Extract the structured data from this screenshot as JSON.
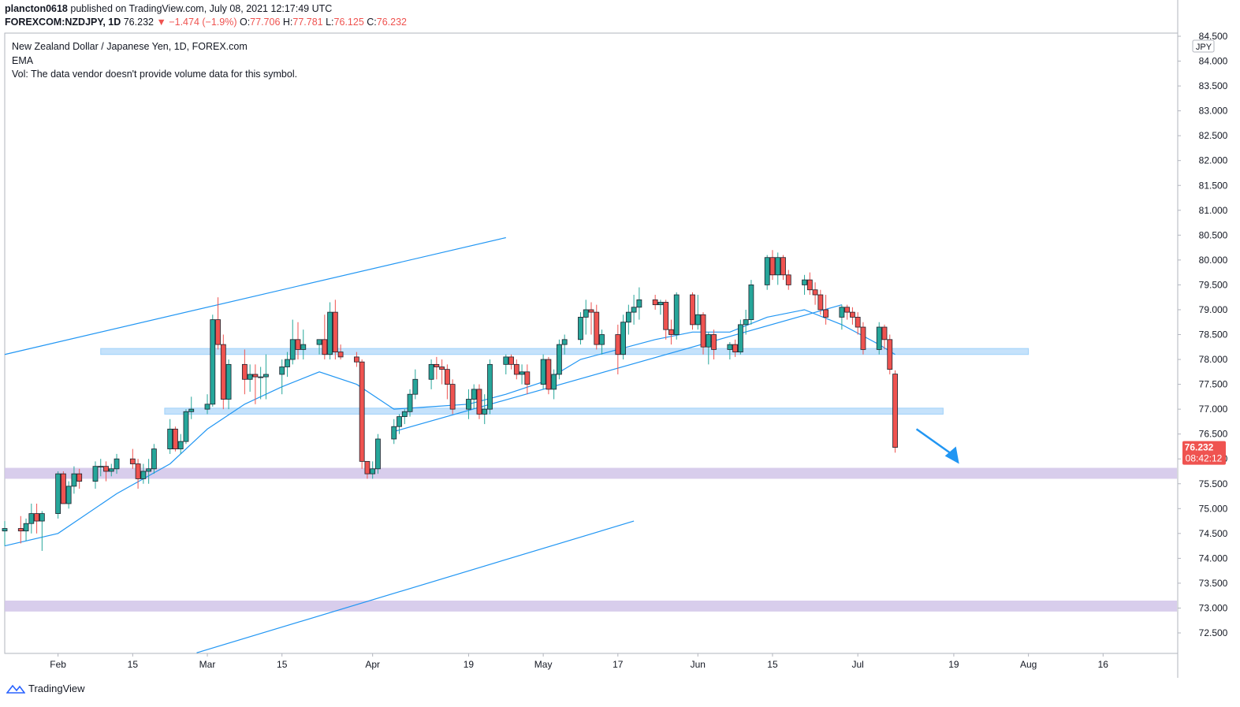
{
  "header": {
    "user": "plancton0618",
    "published": "published on TradingView.com, July 08, 2021 12:17:49 UTC",
    "symbol": "FOREXCOM:NZDJPY, 1D",
    "last": "76.232",
    "change": "−1.474 (−1.9%)",
    "o_label": "O:",
    "o_val": "77.706",
    "h_label": "H:",
    "h_val": "77.781",
    "l_label": "L:",
    "l_val": "76.125",
    "c_label": "C:",
    "c_val": "76.232"
  },
  "legend": {
    "title": "New Zealand Dollar / Japanese Yen, 1D, FOREX.com",
    "indicator": "EMA",
    "volume_note": "Vol: The data vendor doesn't provide volume data for this symbol."
  },
  "price_tag": {
    "price": "76.232",
    "countdown": "08:42:12"
  },
  "currency_label": "JPY",
  "footer": {
    "brand": "TradingView"
  },
  "colors": {
    "up": "#26a69a",
    "down": "#ef5350",
    "ema": "#2196f3",
    "zone_blue": "#bbdefb",
    "zone_purple": "#d1c4e9",
    "line": "#2196f3",
    "price_tag": "#ef5350"
  },
  "chart_data": {
    "type": "candlestick",
    "y_axis_ticks": [
      "84.500",
      "84.000",
      "83.500",
      "83.000",
      "82.500",
      "82.000",
      "81.500",
      "81.000",
      "80.500",
      "80.000",
      "79.500",
      "79.000",
      "78.500",
      "78.000",
      "77.500",
      "77.000",
      "76.500",
      "76.000",
      "75.500",
      "75.000",
      "74.500",
      "74.000",
      "73.500",
      "73.000",
      "72.500"
    ],
    "x_axis_ticks": [
      {
        "label": "Feb",
        "date": "2021-02-01"
      },
      {
        "label": "15",
        "date": "2021-02-15"
      },
      {
        "label": "Mar",
        "date": "2021-03-01"
      },
      {
        "label": "15",
        "date": "2021-03-15"
      },
      {
        "label": "Apr",
        "date": "2021-04-01"
      },
      {
        "label": "19",
        "date": "2021-04-19"
      },
      {
        "label": "May",
        "date": "2021-05-03"
      },
      {
        "label": "17",
        "date": "2021-05-17"
      },
      {
        "label": "Jun",
        "date": "2021-06-01"
      },
      {
        "label": "15",
        "date": "2021-06-15"
      },
      {
        "label": "Jul",
        "date": "2021-07-01"
      },
      {
        "label": "19",
        "date": "2021-07-19"
      },
      {
        "label": "Aug",
        "date": "2021-08-02"
      },
      {
        "label": "16",
        "date": "2021-08-16"
      }
    ],
    "ylim": [
      72.1,
      84.55
    ],
    "xlim": [
      "2021-01-22",
      "2021-08-30"
    ],
    "candles": [
      {
        "d": "2021-01-22",
        "o": 74.55,
        "h": 74.75,
        "l": 74.25,
        "c": 74.6
      },
      {
        "d": "2021-01-25",
        "o": 74.6,
        "h": 74.85,
        "l": 74.3,
        "c": 74.55
      },
      {
        "d": "2021-01-26",
        "o": 74.55,
        "h": 74.8,
        "l": 74.35,
        "c": 74.7
      },
      {
        "d": "2021-01-27",
        "o": 74.7,
        "h": 75.1,
        "l": 74.5,
        "c": 74.9
      },
      {
        "d": "2021-01-28",
        "o": 74.9,
        "h": 75.1,
        "l": 74.5,
        "c": 74.75
      },
      {
        "d": "2021-01-29",
        "o": 74.75,
        "h": 74.95,
        "l": 74.15,
        "c": 74.9
      },
      {
        "d": "2021-02-01",
        "o": 74.9,
        "h": 75.75,
        "l": 74.8,
        "c": 75.7
      },
      {
        "d": "2021-02-02",
        "o": 75.7,
        "h": 75.75,
        "l": 75.1,
        "c": 75.1
      },
      {
        "d": "2021-02-03",
        "o": 75.1,
        "h": 75.55,
        "l": 75.0,
        "c": 75.45
      },
      {
        "d": "2021-02-04",
        "o": 75.45,
        "h": 75.85,
        "l": 75.3,
        "c": 75.7
      },
      {
        "d": "2021-02-05",
        "o": 75.7,
        "h": 75.8,
        "l": 75.4,
        "c": 75.55
      },
      {
        "d": "2021-02-08",
        "o": 75.55,
        "h": 75.95,
        "l": 75.4,
        "c": 75.85
      },
      {
        "d": "2021-02-09",
        "o": 75.85,
        "h": 76.0,
        "l": 75.65,
        "c": 75.85
      },
      {
        "d": "2021-02-10",
        "o": 75.85,
        "h": 75.95,
        "l": 75.55,
        "c": 75.75
      },
      {
        "d": "2021-02-11",
        "o": 75.75,
        "h": 75.9,
        "l": 75.65,
        "c": 75.8
      },
      {
        "d": "2021-02-12",
        "o": 75.8,
        "h": 76.1,
        "l": 75.7,
        "c": 76.0
      },
      {
        "d": "2021-02-15",
        "o": 76.0,
        "h": 76.2,
        "l": 75.8,
        "c": 75.9
      },
      {
        "d": "2021-02-16",
        "o": 75.9,
        "h": 76.0,
        "l": 75.4,
        "c": 75.6
      },
      {
        "d": "2021-02-17",
        "o": 75.6,
        "h": 75.9,
        "l": 75.5,
        "c": 75.75
      },
      {
        "d": "2021-02-18",
        "o": 75.75,
        "h": 76.0,
        "l": 75.5,
        "c": 75.8
      },
      {
        "d": "2021-02-19",
        "o": 75.8,
        "h": 76.3,
        "l": 75.7,
        "c": 76.2
      },
      {
        "d": "2021-02-22",
        "o": 76.2,
        "h": 76.8,
        "l": 76.1,
        "c": 76.6
      },
      {
        "d": "2021-02-23",
        "o": 76.6,
        "h": 76.65,
        "l": 76.15,
        "c": 76.2
      },
      {
        "d": "2021-02-24",
        "o": 76.2,
        "h": 76.5,
        "l": 76.1,
        "c": 76.35
      },
      {
        "d": "2021-02-25",
        "o": 76.35,
        "h": 77.0,
        "l": 76.3,
        "c": 76.95
      },
      {
        "d": "2021-02-26",
        "o": 76.95,
        "h": 77.25,
        "l": 76.8,
        "c": 77.0
      },
      {
        "d": "2021-03-01",
        "o": 77.0,
        "h": 77.3,
        "l": 76.9,
        "c": 77.1
      },
      {
        "d": "2021-03-02",
        "o": 77.1,
        "h": 78.9,
        "l": 77.05,
        "c": 78.8
      },
      {
        "d": "2021-03-03",
        "o": 78.8,
        "h": 79.25,
        "l": 78.2,
        "c": 78.3
      },
      {
        "d": "2021-03-04",
        "o": 78.3,
        "h": 78.5,
        "l": 77.0,
        "c": 77.2
      },
      {
        "d": "2021-03-05",
        "o": 77.2,
        "h": 78.0,
        "l": 77.0,
        "c": 77.9
      },
      {
        "d": "2021-03-08",
        "o": 77.9,
        "h": 78.2,
        "l": 77.3,
        "c": 77.6
      },
      {
        "d": "2021-03-09",
        "o": 77.6,
        "h": 77.9,
        "l": 77.35,
        "c": 77.7
      },
      {
        "d": "2021-03-10",
        "o": 77.7,
        "h": 77.9,
        "l": 77.1,
        "c": 77.65
      },
      {
        "d": "2021-03-11",
        "o": 77.65,
        "h": 77.85,
        "l": 77.2,
        "c": 77.65
      },
      {
        "d": "2021-03-12",
        "o": 77.65,
        "h": 78.1,
        "l": 77.2,
        "c": 77.7
      },
      {
        "d": "2021-03-15",
        "o": 77.7,
        "h": 78.0,
        "l": 77.3,
        "c": 77.85
      },
      {
        "d": "2021-03-16",
        "o": 77.85,
        "h": 78.15,
        "l": 77.65,
        "c": 78.0
      },
      {
        "d": "2021-03-17",
        "o": 78.0,
        "h": 78.8,
        "l": 77.9,
        "c": 78.4
      },
      {
        "d": "2021-03-18",
        "o": 78.4,
        "h": 78.75,
        "l": 78.0,
        "c": 78.2
      },
      {
        "d": "2021-03-19",
        "o": 78.2,
        "h": 78.6,
        "l": 78.0,
        "c": 78.3
      },
      {
        "d": "2021-03-22",
        "o": 78.3,
        "h": 78.4,
        "l": 78.1,
        "c": 78.4
      },
      {
        "d": "2021-03-23",
        "o": 78.4,
        "h": 78.9,
        "l": 78.0,
        "c": 78.1
      },
      {
        "d": "2021-03-24",
        "o": 78.1,
        "h": 79.15,
        "l": 78.0,
        "c": 78.95
      },
      {
        "d": "2021-03-25",
        "o": 78.95,
        "h": 79.2,
        "l": 78.0,
        "c": 78.15
      },
      {
        "d": "2021-03-26",
        "o": 78.15,
        "h": 78.3,
        "l": 78.0,
        "c": 78.05
      },
      {
        "d": "2021-03-29",
        "o": 78.05,
        "h": 78.15,
        "l": 77.85,
        "c": 77.95
      },
      {
        "d": "2021-03-30",
        "o": 77.95,
        "h": 78.0,
        "l": 75.8,
        "c": 75.95
      },
      {
        "d": "2021-03-31",
        "o": 75.95,
        "h": 75.95,
        "l": 75.6,
        "c": 75.7
      },
      {
        "d": "2021-04-01",
        "o": 75.7,
        "h": 75.95,
        "l": 75.6,
        "c": 75.8
      },
      {
        "d": "2021-04-02",
        "o": 75.8,
        "h": 76.5,
        "l": 75.7,
        "c": 76.4
      },
      {
        "d": "2021-04-05",
        "o": 76.4,
        "h": 76.8,
        "l": 76.3,
        "c": 76.65
      },
      {
        "d": "2021-04-06",
        "o": 76.65,
        "h": 76.9,
        "l": 76.5,
        "c": 76.85
      },
      {
        "d": "2021-04-07",
        "o": 76.85,
        "h": 77.0,
        "l": 76.7,
        "c": 76.95
      },
      {
        "d": "2021-04-08",
        "o": 76.95,
        "h": 77.4,
        "l": 76.85,
        "c": 77.3
      },
      {
        "d": "2021-04-09",
        "o": 77.3,
        "h": 77.8,
        "l": 77.2,
        "c": 77.6
      },
      {
        "d": "2021-04-12",
        "o": 77.6,
        "h": 78.0,
        "l": 77.4,
        "c": 77.9
      },
      {
        "d": "2021-04-13",
        "o": 77.9,
        "h": 78.05,
        "l": 77.6,
        "c": 77.85
      },
      {
        "d": "2021-04-14",
        "o": 77.85,
        "h": 78.0,
        "l": 77.5,
        "c": 77.8
      },
      {
        "d": "2021-04-15",
        "o": 77.8,
        "h": 77.9,
        "l": 77.2,
        "c": 77.5
      },
      {
        "d": "2021-04-16",
        "o": 77.5,
        "h": 77.6,
        "l": 76.9,
        "c": 77.0
      },
      {
        "d": "2021-04-19",
        "o": 77.0,
        "h": 77.4,
        "l": 76.8,
        "c": 77.2
      },
      {
        "d": "2021-04-20",
        "o": 77.2,
        "h": 77.5,
        "l": 77.0,
        "c": 77.4
      },
      {
        "d": "2021-04-21",
        "o": 77.4,
        "h": 77.5,
        "l": 76.8,
        "c": 76.9
      },
      {
        "d": "2021-04-22",
        "o": 76.9,
        "h": 77.3,
        "l": 76.7,
        "c": 77.0
      },
      {
        "d": "2021-04-23",
        "o": 77.0,
        "h": 78.0,
        "l": 76.9,
        "c": 77.9
      },
      {
        "d": "2021-04-26",
        "o": 77.9,
        "h": 78.1,
        "l": 77.7,
        "c": 78.05
      },
      {
        "d": "2021-04-27",
        "o": 78.05,
        "h": 78.1,
        "l": 77.8,
        "c": 77.9
      },
      {
        "d": "2021-04-28",
        "o": 77.9,
        "h": 78.0,
        "l": 77.6,
        "c": 77.7
      },
      {
        "d": "2021-04-29",
        "o": 77.7,
        "h": 77.9,
        "l": 77.5,
        "c": 77.75
      },
      {
        "d": "2021-04-30",
        "o": 77.75,
        "h": 77.9,
        "l": 77.3,
        "c": 77.5
      },
      {
        "d": "2021-05-03",
        "o": 77.5,
        "h": 78.1,
        "l": 77.4,
        "c": 78.0
      },
      {
        "d": "2021-05-04",
        "o": 78.0,
        "h": 78.05,
        "l": 77.3,
        "c": 77.4
      },
      {
        "d": "2021-05-05",
        "o": 77.4,
        "h": 77.8,
        "l": 77.2,
        "c": 77.7
      },
      {
        "d": "2021-05-06",
        "o": 77.7,
        "h": 78.4,
        "l": 77.6,
        "c": 78.3
      },
      {
        "d": "2021-05-07",
        "o": 78.3,
        "h": 78.5,
        "l": 78.1,
        "c": 78.4
      },
      {
        "d": "2021-05-10",
        "o": 78.4,
        "h": 78.95,
        "l": 78.3,
        "c": 78.85
      },
      {
        "d": "2021-05-11",
        "o": 78.85,
        "h": 79.2,
        "l": 78.5,
        "c": 79.0
      },
      {
        "d": "2021-05-12",
        "o": 79.0,
        "h": 79.15,
        "l": 78.5,
        "c": 78.95
      },
      {
        "d": "2021-05-13",
        "o": 78.95,
        "h": 79.1,
        "l": 78.2,
        "c": 78.3
      },
      {
        "d": "2021-05-14",
        "o": 78.3,
        "h": 78.6,
        "l": 78.1,
        "c": 78.5
      },
      {
        "d": "2021-05-17",
        "o": 78.5,
        "h": 78.7,
        "l": 77.7,
        "c": 78.1
      },
      {
        "d": "2021-05-18",
        "o": 78.1,
        "h": 78.9,
        "l": 78.0,
        "c": 78.75
      },
      {
        "d": "2021-05-19",
        "o": 78.75,
        "h": 79.1,
        "l": 78.5,
        "c": 78.95
      },
      {
        "d": "2021-05-20",
        "o": 78.95,
        "h": 79.3,
        "l": 78.7,
        "c": 79.05
      },
      {
        "d": "2021-05-21",
        "o": 79.05,
        "h": 79.45,
        "l": 78.8,
        "c": 79.2
      },
      {
        "d": "2021-05-24",
        "o": 79.2,
        "h": 79.3,
        "l": 79.0,
        "c": 79.1
      },
      {
        "d": "2021-05-25",
        "o": 79.1,
        "h": 79.2,
        "l": 78.9,
        "c": 79.15
      },
      {
        "d": "2021-05-26",
        "o": 79.15,
        "h": 79.2,
        "l": 78.4,
        "c": 78.6
      },
      {
        "d": "2021-05-27",
        "o": 78.6,
        "h": 78.8,
        "l": 78.3,
        "c": 78.5
      },
      {
        "d": "2021-05-28",
        "o": 78.5,
        "h": 79.35,
        "l": 78.4,
        "c": 79.3
      },
      {
        "d": "2021-05-31",
        "o": 79.3,
        "h": 79.35,
        "l": 78.6,
        "c": 78.7
      },
      {
        "d": "2021-06-01",
        "o": 78.7,
        "h": 79.3,
        "l": 78.6,
        "c": 78.9
      },
      {
        "d": "2021-06-02",
        "o": 78.9,
        "h": 78.95,
        "l": 78.1,
        "c": 78.25
      },
      {
        "d": "2021-06-03",
        "o": 78.25,
        "h": 78.55,
        "l": 77.9,
        "c": 78.5
      },
      {
        "d": "2021-06-04",
        "o": 78.5,
        "h": 78.6,
        "l": 78.0,
        "c": 78.2
      },
      {
        "d": "2021-06-07",
        "o": 78.2,
        "h": 78.35,
        "l": 78.0,
        "c": 78.3
      },
      {
        "d": "2021-06-08",
        "o": 78.3,
        "h": 78.4,
        "l": 78.05,
        "c": 78.15
      },
      {
        "d": "2021-06-09",
        "o": 78.15,
        "h": 78.8,
        "l": 78.1,
        "c": 78.7
      },
      {
        "d": "2021-06-10",
        "o": 78.7,
        "h": 79.0,
        "l": 78.5,
        "c": 78.8
      },
      {
        "d": "2021-06-11",
        "o": 78.8,
        "h": 79.6,
        "l": 78.7,
        "c": 79.5
      },
      {
        "d": "2021-06-14",
        "o": 79.5,
        "h": 80.1,
        "l": 79.4,
        "c": 80.05
      },
      {
        "d": "2021-06-15",
        "o": 80.05,
        "h": 80.2,
        "l": 79.6,
        "c": 79.7
      },
      {
        "d": "2021-06-16",
        "o": 79.7,
        "h": 80.15,
        "l": 79.5,
        "c": 80.05
      },
      {
        "d": "2021-06-17",
        "o": 80.05,
        "h": 80.1,
        "l": 79.6,
        "c": 79.7
      },
      {
        "d": "2021-06-18",
        "o": 79.7,
        "h": 79.8,
        "l": 79.4,
        "c": 79.5
      },
      {
        "d": "2021-06-21",
        "o": 79.5,
        "h": 79.7,
        "l": 79.3,
        "c": 79.6
      },
      {
        "d": "2021-06-22",
        "o": 79.6,
        "h": 79.75,
        "l": 79.3,
        "c": 79.4
      },
      {
        "d": "2021-06-23",
        "o": 79.4,
        "h": 79.55,
        "l": 79.1,
        "c": 79.3
      },
      {
        "d": "2021-06-24",
        "o": 79.3,
        "h": 79.4,
        "l": 78.9,
        "c": 79.0
      },
      {
        "d": "2021-06-25",
        "o": 79.0,
        "h": 79.3,
        "l": 78.7,
        "c": 78.85
      },
      {
        "d": "2021-06-28",
        "o": 78.85,
        "h": 79.1,
        "l": 78.6,
        "c": 79.05
      },
      {
        "d": "2021-06-29",
        "o": 79.05,
        "h": 79.1,
        "l": 78.8,
        "c": 78.95
      },
      {
        "d": "2021-06-30",
        "o": 78.95,
        "h": 79.05,
        "l": 78.7,
        "c": 78.85
      },
      {
        "d": "2021-07-01",
        "o": 78.85,
        "h": 78.95,
        "l": 78.5,
        "c": 78.65
      },
      {
        "d": "2021-07-02",
        "o": 78.65,
        "h": 78.75,
        "l": 78.1,
        "c": 78.2
      },
      {
        "d": "2021-07-05",
        "o": 78.2,
        "h": 78.75,
        "l": 78.1,
        "c": 78.65
      },
      {
        "d": "2021-07-06",
        "o": 78.65,
        "h": 78.7,
        "l": 78.2,
        "c": 78.4
      },
      {
        "d": "2021-07-07",
        "o": 78.4,
        "h": 78.5,
        "l": 77.7,
        "c": 77.8
      },
      {
        "d": "2021-07-08",
        "o": 77.706,
        "h": 77.781,
        "l": 76.125,
        "c": 76.232
      }
    ],
    "ema": [
      [
        "2021-01-22",
        74.25
      ],
      [
        "2021-02-01",
        74.5
      ],
      [
        "2021-02-12",
        75.3
      ],
      [
        "2021-02-22",
        75.9
      ],
      [
        "2021-03-01",
        76.6
      ],
      [
        "2021-03-08",
        77.1
      ],
      [
        "2021-03-15",
        77.45
      ],
      [
        "2021-03-22",
        77.75
      ],
      [
        "2021-03-29",
        77.5
      ],
      [
        "2021-04-05",
        77.0
      ],
      [
        "2021-04-12",
        77.05
      ],
      [
        "2021-04-19",
        77.1
      ],
      [
        "2021-04-26",
        77.3
      ],
      [
        "2021-05-03",
        77.55
      ],
      [
        "2021-05-10",
        78.0
      ],
      [
        "2021-05-17",
        78.2
      ],
      [
        "2021-05-24",
        78.4
      ],
      [
        "2021-05-31",
        78.55
      ],
      [
        "2021-06-07",
        78.55
      ],
      [
        "2021-06-14",
        78.85
      ],
      [
        "2021-06-21",
        79.0
      ],
      [
        "2021-06-28",
        78.7
      ],
      [
        "2021-07-05",
        78.3
      ],
      [
        "2021-07-08",
        78.1
      ]
    ],
    "zones": [
      {
        "color": "blue",
        "from": "2021-02-09",
        "to": "2021-08-02",
        "y1": 78.1,
        "y2": 78.22
      },
      {
        "color": "blue",
        "from": "2021-02-21",
        "to": "2021-07-17",
        "y1": 76.9,
        "y2": 77.02
      },
      {
        "color": "purple",
        "from": "2021-01-22",
        "to": "2021-08-30",
        "y1": 75.6,
        "y2": 75.82
      },
      {
        "color": "purple",
        "from": "2021-01-22",
        "to": "2021-08-30",
        "y1": 72.93,
        "y2": 73.15
      }
    ],
    "trendlines": [
      {
        "x1": "2021-01-22",
        "y1": 78.1,
        "x2": "2021-04-26",
        "y2": 80.45
      },
      {
        "x1": "2021-04-05",
        "y1": 76.55,
        "x2": "2021-06-28",
        "y2": 79.1
      },
      {
        "x1": "2021-02-27",
        "y1": 72.1,
        "x2": "2021-05-20",
        "y2": 74.75
      }
    ],
    "arrow": {
      "x1": "2021-07-12",
      "y1": 76.6,
      "x2": "2021-07-20",
      "y2": 75.9
    }
  }
}
